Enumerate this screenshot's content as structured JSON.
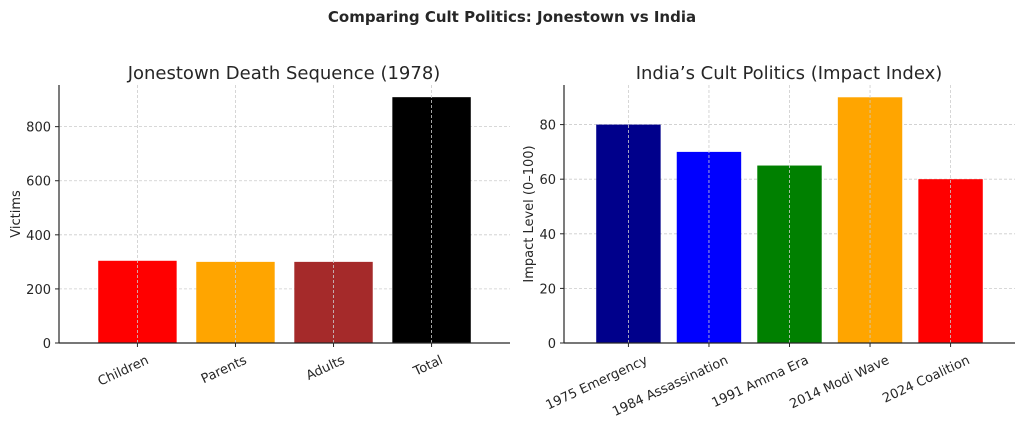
{
  "suptitle": "Comparing Cult Politics: Jonestown vs India",
  "chart_data": [
    {
      "type": "bar",
      "title": "Jonestown Death Sequence (1978)",
      "xlabel": "",
      "ylabel": "Victims",
      "categories": [
        "Children",
        "Parents",
        "Adults",
        "Total"
      ],
      "values": [
        304,
        300,
        300,
        909
      ],
      "colors": [
        "#ff0000",
        "#ffa500",
        "#a52a2a",
        "#000000"
      ],
      "ylim": [
        0,
        954
      ],
      "yticks": [
        0,
        200,
        400,
        600,
        800
      ],
      "grid": true
    },
    {
      "type": "bar",
      "title": "India’s Cult Politics (Impact Index)",
      "xlabel": "",
      "ylabel": "Impact Level (0–100)",
      "categories": [
        "1975 Emergency",
        "1984 Assassination",
        "1991 Amma Era",
        "2014 Modi Wave",
        "2024 Coalition"
      ],
      "values": [
        80,
        70,
        65,
        90,
        60
      ],
      "colors": [
        "#00008b",
        "#0000ff",
        "#008000",
        "#ffa500",
        "#ff0000"
      ],
      "ylim": [
        0,
        94.5
      ],
      "yticks": [
        0,
        20,
        40,
        60,
        80
      ],
      "grid": true
    }
  ]
}
